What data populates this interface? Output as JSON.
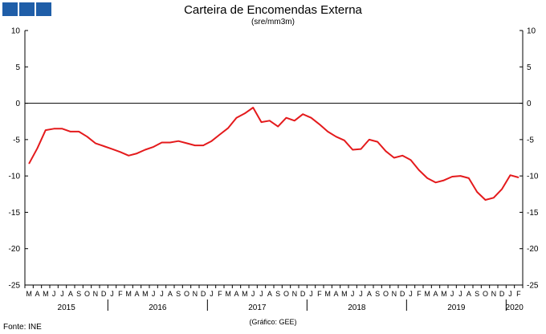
{
  "header": {
    "title": "Carteira de Encomendas  Externa",
    "subtitle": "(sre/mm3m)"
  },
  "footer": {
    "source": "Fonte: INE",
    "credit": "(Gráfico: GEE)"
  },
  "colors": {
    "series": "#e41a1c",
    "logo": "#1f5ea8",
    "axis": "#000000"
  },
  "chart_data": {
    "type": "line",
    "title": "Carteira de Encomendas  Externa",
    "subtitle": "(sre/mm3m)",
    "ylim": [
      -25,
      10
    ],
    "yticks": [
      10,
      5,
      0,
      -5,
      -10,
      -15,
      -20,
      -25
    ],
    "ytick_labels": [
      "10",
      "5",
      "0",
      "-5",
      "-10",
      "-15",
      "-20",
      "-25"
    ],
    "grid": false,
    "month_labels": [
      "M",
      "A",
      "M",
      "J",
      "J",
      "A",
      "S",
      "O",
      "N",
      "D",
      "J",
      "F",
      "M",
      "A",
      "M",
      "J",
      "J",
      "A",
      "S",
      "O",
      "N",
      "D",
      "J",
      "F",
      "M",
      "A",
      "M",
      "J",
      "J",
      "A",
      "S",
      "O",
      "N",
      "D",
      "J",
      "F",
      "M",
      "A",
      "M",
      "J",
      "J",
      "A",
      "S",
      "O",
      "N",
      "D",
      "J",
      "F",
      "M",
      "A",
      "M",
      "J",
      "J",
      "A",
      "S",
      "O",
      "N",
      "D",
      "J",
      "F"
    ],
    "years": [
      {
        "label": "2015",
        "start": 0,
        "end": 9
      },
      {
        "label": "2016",
        "start": 10,
        "end": 21
      },
      {
        "label": "2017",
        "start": 22,
        "end": 33
      },
      {
        "label": "2018",
        "start": 34,
        "end": 45
      },
      {
        "label": "2019",
        "start": 46,
        "end": 57
      },
      {
        "label": "2020",
        "start": 58,
        "end": 59
      }
    ],
    "series": [
      {
        "values": [
          -8.3,
          -6.2,
          -3.7,
          -3.5,
          -3.5,
          -3.9,
          -3.9,
          -4.6,
          -5.5,
          -5.9,
          -6.3,
          -6.7,
          -7.2,
          -6.9,
          -6.4,
          -6.0,
          -5.4,
          -5.4,
          -5.2,
          -5.5,
          -5.8,
          -5.8,
          -5.2,
          -4.3,
          -3.4,
          -2.0,
          -1.4,
          -0.6,
          -2.6,
          -2.4,
          -3.2,
          -2.0,
          -2.4,
          -1.5,
          -2.0,
          -2.9,
          -3.9,
          -4.6,
          -5.1,
          -6.4,
          -6.3,
          -5.0,
          -5.3,
          -6.6,
          -7.5,
          -7.2,
          -7.8,
          -9.2,
          -10.3,
          -10.9,
          -10.6,
          -10.1,
          -10.0,
          -10.3,
          -12.2,
          -13.3,
          -13.0,
          -11.8,
          -9.9,
          -10.2
        ]
      }
    ]
  }
}
